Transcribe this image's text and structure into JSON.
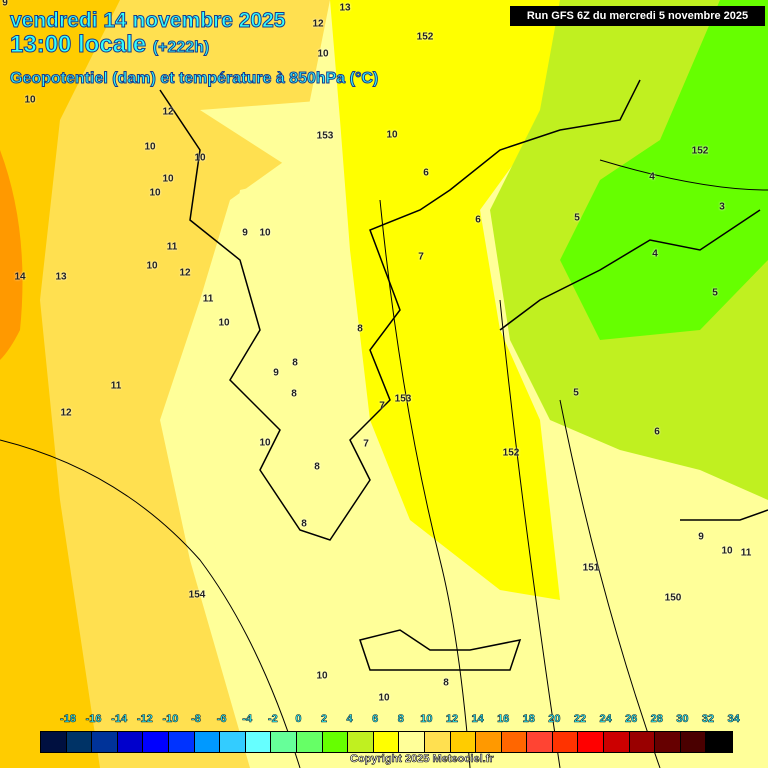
{
  "header": {
    "date": "vendredi 14 novembre 2025",
    "time": "13:00 locale",
    "lead": "(+222h)",
    "parameter": "Geopotentiel (dam) et température à 850hPa (°C)",
    "run": "Run GFS 6Z du mercredi 5 novembre 2025"
  },
  "map": {
    "labels": [
      "9",
      "12",
      "13",
      "10",
      "152",
      "10",
      "12",
      "10",
      "10",
      "10",
      "153",
      "10",
      "6",
      "152",
      "4",
      "3",
      "10",
      "9",
      "10",
      "6",
      "5",
      "7",
      "4",
      "11",
      "10",
      "12",
      "14",
      "13",
      "11",
      "10",
      "5",
      "8",
      "8",
      "9",
      "8",
      "11",
      "7",
      "153",
      "5",
      "12",
      "10",
      "7",
      "6",
      "8",
      "152",
      "8",
      "9",
      "10",
      "11",
      "151",
      "154",
      "150",
      "10",
      "8",
      "10"
    ]
  },
  "legend": {
    "ticks": [
      "-18",
      "-16",
      "-14",
      "-12",
      "-10",
      "-8",
      "-6",
      "-4",
      "-2",
      "0",
      "2",
      "4",
      "6",
      "8",
      "10",
      "12",
      "14",
      "16",
      "18",
      "20",
      "22",
      "24",
      "26",
      "28",
      "30",
      "32",
      "34"
    ],
    "colors": [
      "#001040",
      "#003366",
      "#003399",
      "#0000cc",
      "#0000ff",
      "#0033ff",
      "#0099ff",
      "#33ccff",
      "#66ffff",
      "#66ff99",
      "#66ff66",
      "#66ff00",
      "#c0f020",
      "#ffff00",
      "#ffff99",
      "#ffe050",
      "#ffcc00",
      "#ff9900",
      "#ff6600",
      "#ff4433",
      "#ff3300",
      "#ff0000",
      "#cc0000",
      "#990000",
      "#660000",
      "#4a0000",
      "#000000"
    ]
  },
  "copyright": "Copyright 2025 Meteociel.fr"
}
